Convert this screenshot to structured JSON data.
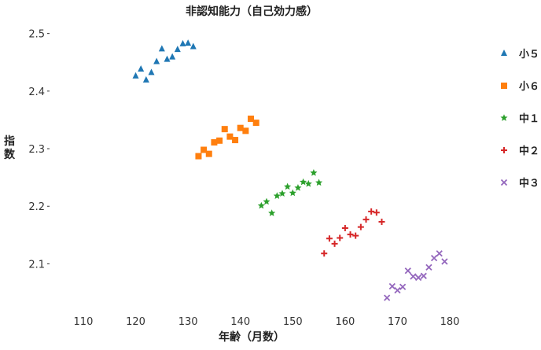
{
  "chart_data": {
    "type": "scatter",
    "title": "非認知能力（自己効力感）",
    "xlabel": "年齢（月数）",
    "ylabel": "指数",
    "xlim": [
      104,
      186
    ],
    "ylim": [
      2.02,
      2.52
    ],
    "xticks": [
      110,
      120,
      130,
      140,
      150,
      160,
      170,
      180
    ],
    "yticks": [
      2.1,
      2.2,
      2.3,
      2.4,
      2.5
    ],
    "grid": false,
    "legend_position": "right",
    "series": [
      {
        "name": "小５",
        "marker": "triangle",
        "color": "#1f77b4",
        "x": [
          120,
          121,
          122,
          123,
          124,
          125,
          126,
          127,
          128,
          129,
          130,
          131
        ],
        "y": [
          2.426,
          2.438,
          2.419,
          2.432,
          2.451,
          2.473,
          2.455,
          2.459,
          2.472,
          2.482,
          2.483,
          2.477
        ]
      },
      {
        "name": "小６",
        "marker": "square",
        "color": "#ff7f0e",
        "x": [
          132,
          133,
          134,
          135,
          136,
          137,
          138,
          139,
          140,
          141,
          142,
          143
        ],
        "y": [
          2.287,
          2.298,
          2.291,
          2.311,
          2.314,
          2.334,
          2.321,
          2.315,
          2.336,
          2.331,
          2.352,
          2.345
        ]
      },
      {
        "name": "中１",
        "marker": "star",
        "color": "#2ca02c",
        "x": [
          144,
          145,
          146,
          147,
          148,
          149,
          150,
          151,
          152,
          153,
          154,
          155
        ],
        "y": [
          2.201,
          2.208,
          2.188,
          2.218,
          2.222,
          2.234,
          2.223,
          2.232,
          2.242,
          2.239,
          2.258,
          2.241
        ]
      },
      {
        "name": "中２",
        "marker": "plus",
        "color": "#d62728",
        "x": [
          156,
          157,
          158,
          159,
          160,
          161,
          162,
          163,
          164,
          165,
          166,
          167
        ],
        "y": [
          2.118,
          2.144,
          2.135,
          2.145,
          2.162,
          2.151,
          2.149,
          2.164,
          2.177,
          2.191,
          2.189,
          2.173
        ]
      },
      {
        "name": "中３",
        "marker": "x",
        "color": "#9467bd",
        "x": [
          168,
          169,
          170,
          171,
          172,
          173,
          174,
          175,
          176,
          177,
          178,
          179
        ],
        "y": [
          2.041,
          2.061,
          2.054,
          2.06,
          2.088,
          2.078,
          2.076,
          2.079,
          2.094,
          2.11,
          2.118,
          2.104
        ]
      }
    ]
  }
}
